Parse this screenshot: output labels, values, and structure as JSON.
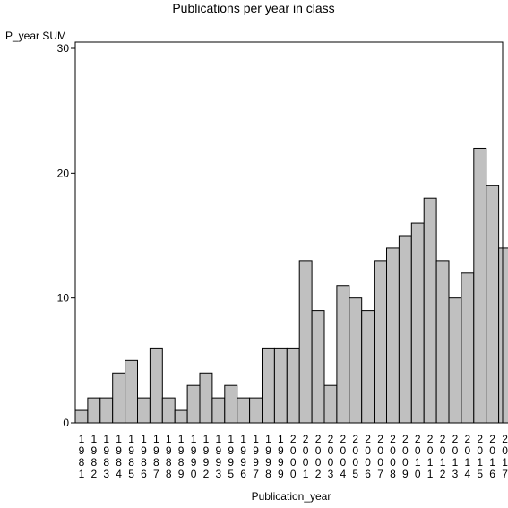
{
  "chart_data": {
    "type": "bar",
    "title": "Publications per year in class",
    "ylabel": "P_year SUM",
    "xlabel": "Publication_year",
    "ylim": [
      0,
      30
    ],
    "yticks": [
      0,
      10,
      20,
      30
    ],
    "grid": false,
    "bar_color": "#c0c0c0",
    "edge_color": "#000000",
    "categories": [
      "1981",
      "1982",
      "1983",
      "1984",
      "1985",
      "1986",
      "1987",
      "1988",
      "1989",
      "1990",
      "1992",
      "1993",
      "1995",
      "1996",
      "1997",
      "1998",
      "1999",
      "2000",
      "2001",
      "2002",
      "2003",
      "2004",
      "2005",
      "2006",
      "2007",
      "2008",
      "2009",
      "2010",
      "2011",
      "2012",
      "2013",
      "2014",
      "2015",
      "2016",
      "2017"
    ],
    "values": [
      1,
      2,
      2,
      4,
      5,
      2,
      6,
      2,
      1,
      3,
      4,
      2,
      3,
      2,
      2,
      6,
      6,
      6,
      13,
      9,
      3,
      11,
      10,
      9,
      13,
      14,
      15,
      16,
      18,
      13,
      10,
      12,
      22,
      19,
      14
    ]
  }
}
